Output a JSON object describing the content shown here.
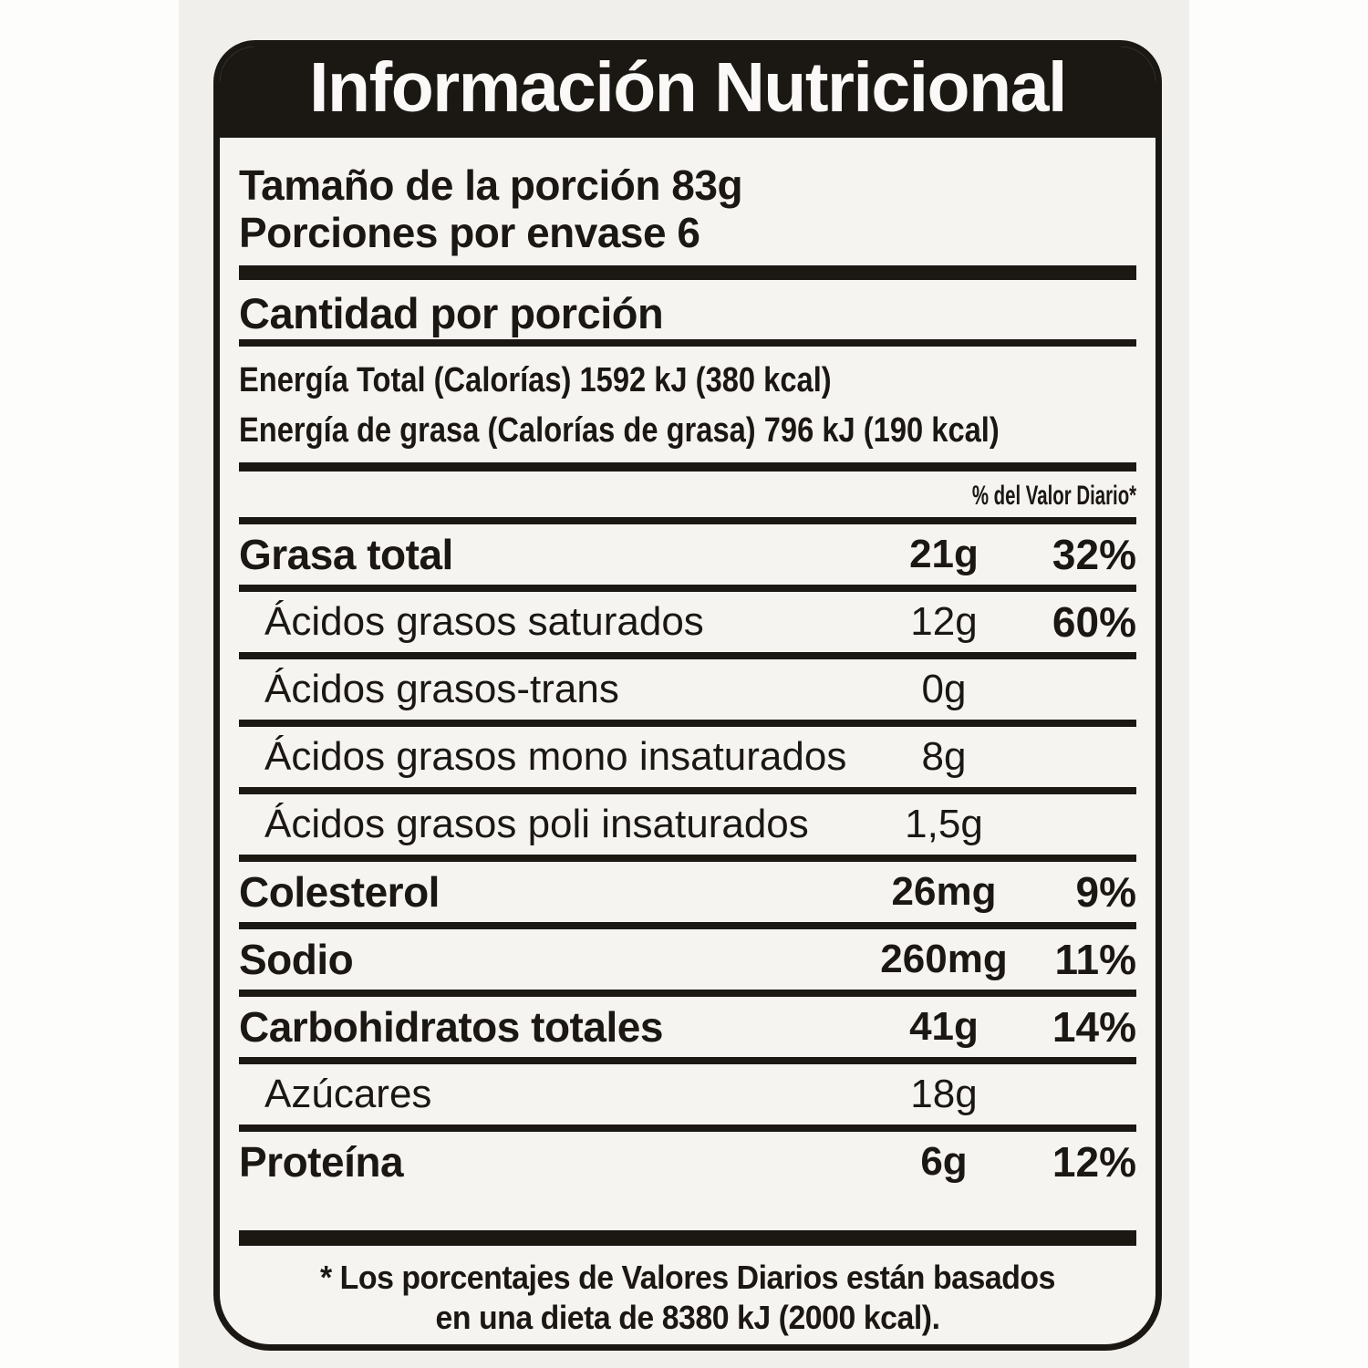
{
  "label": {
    "title": "Información Nutricional",
    "serving": {
      "size": "Tamaño de la porción 83g",
      "per_container": "Porciones por envase 6"
    },
    "amount_heading": "Cantidad por porción",
    "energy_total": "Energía Total (Calorías) 1592 kJ (380 kcal)",
    "energy_fat": "Energía de grasa (Calorías de grasa) 796 kJ (190 kcal)",
    "daily_value_heading": "% del Valor Diario*",
    "rows": [
      {
        "label": "Grasa total",
        "amount": "21g",
        "dv": "32%"
      },
      {
        "label": "Ácidos grasos saturados",
        "amount": "12g",
        "dv": "60%"
      },
      {
        "label": "Ácidos grasos-trans",
        "amount": "0g",
        "dv": ""
      },
      {
        "label": "Ácidos grasos mono insaturados",
        "amount": "8g",
        "dv": ""
      },
      {
        "label": "Ácidos grasos poli insaturados",
        "amount": "1,5g",
        "dv": ""
      },
      {
        "label": "Colesterol",
        "amount": "26mg",
        "dv": "9%"
      },
      {
        "label": "Sodio",
        "amount": "260mg",
        "dv": "11%"
      },
      {
        "label": "Carbohidratos totales",
        "amount": "41g",
        "dv": "14%"
      },
      {
        "label": "Azúcares",
        "amount": "18g",
        "dv": ""
      },
      {
        "label": "Proteína",
        "amount": "6g",
        "dv": "12%"
      }
    ],
    "footnote_line1": "* Los porcentajes de Valores Diarios están basados",
    "footnote_line2": "en una dieta de 8380 kJ (2000 kcal).",
    "colors": {
      "ink": "#1b1713",
      "panel_background": "#f6f4f1",
      "band_background": "#f1efec",
      "title_text": "#faf9f7"
    }
  }
}
